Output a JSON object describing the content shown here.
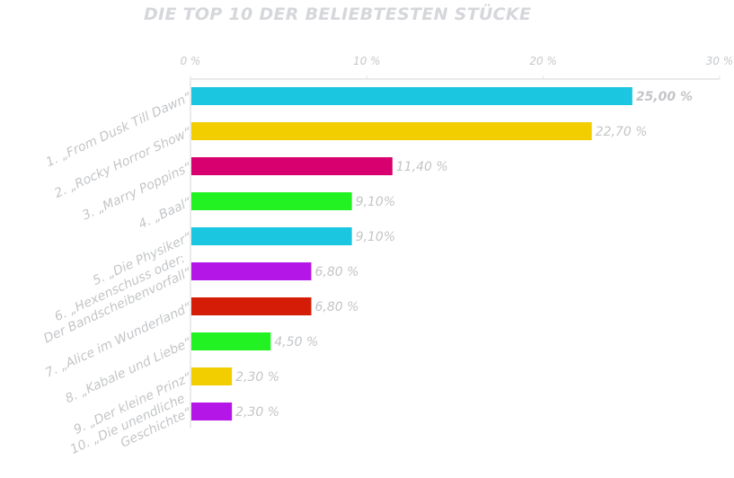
{
  "chart_data": {
    "type": "bar",
    "orientation": "horizontal",
    "title": "DIE TOP 10 DER BELIEBTESTEN STÜCKE",
    "xlim": [
      0,
      30
    ],
    "x_ticks": [
      0,
      10,
      20,
      30
    ],
    "x_tick_labels": [
      "0 %",
      "10 %",
      "20 %",
      "30 %"
    ],
    "grid": false,
    "legend": "none",
    "categories": [
      [
        "1. „From Dusk Till Dawn“"
      ],
      [
        "2. „Rocky Horror Show“"
      ],
      [
        "3. „Marry Poppins“"
      ],
      [
        "4. „Baal“"
      ],
      [
        "5. „Die Physiker“"
      ],
      [
        "6. „Hexenschuss oder:",
        "Der Bandscheibenvorfall“"
      ],
      [
        "7. „Alice im Wunderland“"
      ],
      [
        "8. „Kabale und Liebe“"
      ],
      [
        "9. „Der kleine Prinz“"
      ],
      [
        "10. „Die unendliche",
        "Geschichte“"
      ]
    ],
    "values": [
      25.0,
      22.7,
      11.4,
      9.1,
      9.1,
      6.8,
      6.8,
      4.5,
      2.3,
      2.3
    ],
    "value_labels": [
      "25,00 %",
      "22,70 %",
      "11,40 %",
      "9,10%",
      "9,10%",
      "6,80 %",
      "6,80 %",
      "4,50 %",
      "2,30 %",
      "2,30 %"
    ],
    "colors": [
      "#1bc6e0",
      "#f2cd00",
      "#d8006e",
      "#22f222",
      "#1bc6e0",
      "#b516e8",
      "#d41c06",
      "#22f222",
      "#f2cd00",
      "#b516e8"
    ],
    "axis_color": "#e2e4e6"
  }
}
